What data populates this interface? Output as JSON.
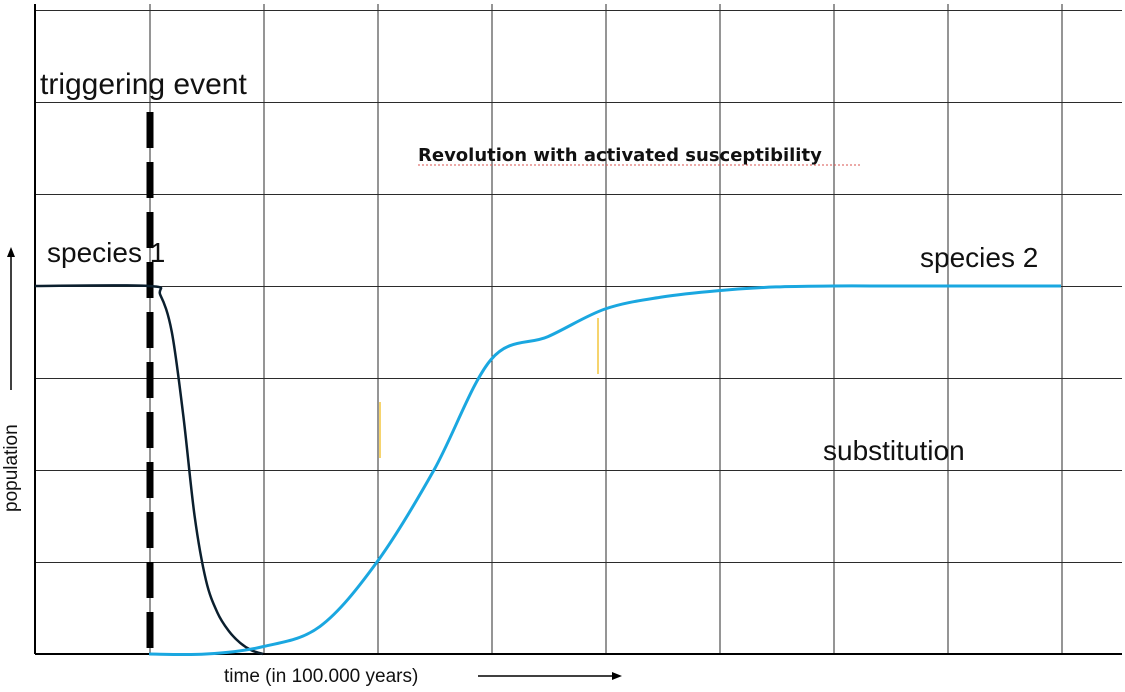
{
  "chart_data": {
    "type": "line",
    "title": "Revolution with activated susceptibility",
    "xlabel": "time (in 100.000 years)",
    "ylabel": "population",
    "xlim": [
      0,
      9.4
    ],
    "ylim": [
      0,
      7.1
    ],
    "grid": true,
    "event": {
      "label": "triggering event",
      "x": 1
    },
    "annotations": {
      "species1": "species 1",
      "species2": "species 2",
      "substitution": "substitution"
    },
    "series": [
      {
        "color": "#0b1f2e",
        "x": [
          0,
          1.0,
          1.1,
          1.2,
          1.3,
          1.4,
          1.5,
          1.6,
          1.7,
          1.8,
          1.9,
          2.0
        ],
        "y": [
          4.0,
          4.0,
          3.9,
          3.5,
          2.6,
          1.5,
          0.8,
          0.45,
          0.25,
          0.12,
          0.04,
          0.0
        ]
      },
      {
        "color": "#1aa7e0",
        "x": [
          1.0,
          1.5,
          2.0,
          2.5,
          3.0,
          3.5,
          4.0,
          4.5,
          5.0,
          5.5,
          6.0,
          6.5,
          7.0,
          7.5,
          8.0,
          8.5,
          9.0
        ],
        "y": [
          0.0,
          0.0,
          0.08,
          0.3,
          1.0,
          2.0,
          3.2,
          3.45,
          3.75,
          3.88,
          3.95,
          3.99,
          4.0,
          4.0,
          4.0,
          4.0,
          4.0
        ]
      }
    ],
    "colors": {
      "grid": "#2b2b2b",
      "event_line": "#000000",
      "marker": "#f2c53d"
    }
  }
}
